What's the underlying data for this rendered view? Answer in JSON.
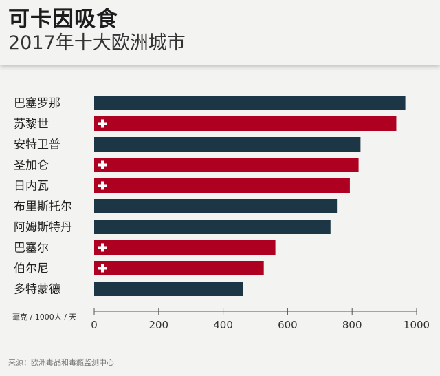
{
  "header": {
    "title": "可卡因吸食",
    "subtitle": "2017年十大欧洲城市"
  },
  "source": "来源：欧洲毒品和毒瘾监测中心",
  "colors": {
    "default_bar": "#1d3646",
    "swiss_bar": "#ae0020",
    "cross": "#ffffff",
    "axis": "#555555"
  },
  "chart_data": {
    "type": "bar",
    "orientation": "horizontal",
    "title": "可卡因吸食",
    "subtitle": "2017年十大欧洲城市",
    "xlabel": "毫克 / 1000人 / 天",
    "ylabel": "",
    "xlim": [
      0,
      1000
    ],
    "xticks": [
      0,
      200,
      400,
      600,
      800,
      1000
    ],
    "categories": [
      "巴塞罗那",
      "苏黎世",
      "安特卫普",
      "圣加仑",
      "日内瓦",
      "布里斯托尔",
      "阿姆斯特丹",
      "巴塞尔",
      "伯尔尼",
      "多特蒙德"
    ],
    "values": [
      965,
      937,
      826,
      820,
      793,
      753,
      733,
      562,
      526,
      462
    ],
    "swiss": [
      false,
      true,
      false,
      true,
      true,
      false,
      false,
      true,
      true,
      false
    ],
    "highlight_note": "瑞士城市以红色条形和瑞士十字标示"
  }
}
